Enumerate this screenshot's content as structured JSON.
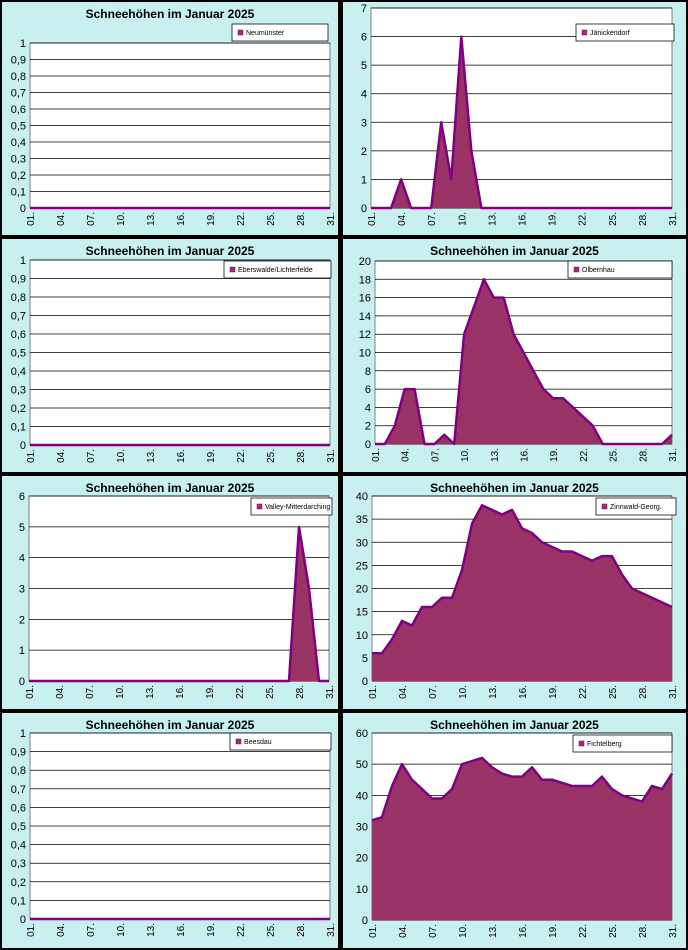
{
  "theme": {
    "panel_bg": "#c7f0ef",
    "plot_bg": "#ffffff",
    "area_fill": "#993366",
    "area_line": "#800080",
    "grid": "#000000"
  },
  "chart_data": [
    {
      "type": "area",
      "title": "Schneehöhen im Januar 2025",
      "series": [
        {
          "name": "Neumünster",
          "values": [
            0,
            0,
            0,
            0,
            0,
            0,
            0,
            0,
            0,
            0,
            0,
            0,
            0,
            0,
            0,
            0,
            0,
            0,
            0,
            0,
            0,
            0,
            0,
            0,
            0,
            0,
            0,
            0,
            0,
            0,
            0
          ]
        }
      ],
      "ylim": [
        0,
        1
      ],
      "yticks": [
        "0",
        "0,1",
        "0,2",
        "0,3",
        "0,4",
        "0,5",
        "0,6",
        "0,7",
        "0,8",
        "0,9",
        "1"
      ],
      "xticks": [
        "01.",
        "04.",
        "07.",
        "10.",
        "13.",
        "16.",
        "19.",
        "22.",
        "25.",
        "28.",
        "31."
      ],
      "legend": "top-right"
    },
    {
      "type": "area",
      "title": "Schneehöhen im Januar 2025",
      "series": [
        {
          "name": "Jänickendorf",
          "values": [
            0,
            0,
            0,
            1,
            0,
            0,
            0,
            3,
            1,
            6,
            2,
            0,
            0,
            0,
            0,
            0,
            0,
            0,
            0,
            0,
            0,
            0,
            0,
            0,
            0,
            0,
            0,
            0,
            0,
            0,
            0
          ]
        }
      ],
      "ylim": [
        0,
        7
      ],
      "yticks": [
        "0",
        "1",
        "2",
        "3",
        "4",
        "5",
        "6",
        "7"
      ],
      "xticks": [
        "01.",
        "04.",
        "07.",
        "10.",
        "13.",
        "16.",
        "19.",
        "22.",
        "25.",
        "28.",
        "31."
      ],
      "legend": "top-right"
    },
    {
      "type": "area",
      "title": "Schneehöhen im Januar 2025",
      "series": [
        {
          "name": "Eberswalde/Lichterfelde",
          "values": [
            0,
            0,
            0,
            0,
            0,
            0,
            0,
            0,
            0,
            0,
            0,
            0,
            0,
            0,
            0,
            0,
            0,
            0,
            0,
            0,
            0,
            0,
            0,
            0,
            0,
            0,
            0,
            0,
            0,
            0,
            0
          ]
        }
      ],
      "ylim": [
        0,
        1
      ],
      "yticks": [
        "0",
        "0,1",
        "0,2",
        "0,3",
        "0,4",
        "0,5",
        "0,6",
        "0,7",
        "0,8",
        "0,9",
        "1"
      ],
      "xticks": [
        "01.",
        "04.",
        "07.",
        "10.",
        "13.",
        "16.",
        "19.",
        "22.",
        "25.",
        "28.",
        "31."
      ],
      "legend": "top-right"
    },
    {
      "type": "area",
      "title": "Schneehöhen im Januar 2025",
      "series": [
        {
          "name": "Olbernhau",
          "values": [
            0,
            0,
            2,
            6,
            6,
            0,
            0,
            1,
            0,
            12,
            15,
            18,
            16,
            16,
            12,
            10,
            8,
            6,
            5,
            5,
            4,
            3,
            2,
            0,
            0,
            0,
            0,
            0,
            0,
            0,
            1
          ]
        }
      ],
      "ylim": [
        0,
        20
      ],
      "yticks": [
        "0",
        "2",
        "4",
        "6",
        "8",
        "10",
        "12",
        "14",
        "16",
        "18",
        "20"
      ],
      "xticks": [
        "01.",
        "04.",
        "07.",
        "10.",
        "13.",
        "16.",
        "19.",
        "22.",
        "25.",
        "28.",
        "31."
      ],
      "legend": "top-right"
    },
    {
      "type": "area",
      "title": "Schneehöhen im Januar 2025",
      "series": [
        {
          "name": "Valley-Mitterdarching",
          "values": [
            0,
            0,
            0,
            0,
            0,
            0,
            0,
            0,
            0,
            0,
            0,
            0,
            0,
            0,
            0,
            0,
            0,
            0,
            0,
            0,
            0,
            0,
            0,
            0,
            0,
            0,
            0,
            5,
            3,
            0,
            0
          ]
        }
      ],
      "ylim": [
        0,
        6
      ],
      "yticks": [
        "0",
        "1",
        "2",
        "3",
        "4",
        "5",
        "6"
      ],
      "xticks": [
        "01.",
        "04.",
        "07.",
        "10.",
        "13.",
        "16.",
        "19.",
        "22.",
        "25.",
        "28.",
        "31."
      ],
      "legend": "top-right"
    },
    {
      "type": "area",
      "title": "Schneehöhen im Januar 2025",
      "series": [
        {
          "name": "Zinnwald-Georg.",
          "values": [
            6,
            6,
            9,
            13,
            12,
            16,
            16,
            18,
            18,
            24,
            34,
            38,
            37,
            36,
            37,
            33,
            32,
            30,
            29,
            28,
            28,
            27,
            26,
            27,
            27,
            23,
            20,
            19,
            18,
            17,
            16
          ]
        }
      ],
      "ylim": [
        0,
        40
      ],
      "yticks": [
        "0",
        "5",
        "10",
        "15",
        "20",
        "25",
        "30",
        "35",
        "40"
      ],
      "xticks": [
        "01.",
        "04.",
        "07.",
        "10.",
        "13.",
        "16.",
        "19.",
        "22.",
        "25.",
        "28.",
        "31."
      ],
      "legend": "top-right"
    },
    {
      "type": "area",
      "title": "Schneehöhen im Januar 2025",
      "series": [
        {
          "name": "Beesdau",
          "values": [
            0,
            0,
            0,
            0,
            0,
            0,
            0,
            0,
            0,
            0,
            0,
            0,
            0,
            0,
            0,
            0,
            0,
            0,
            0,
            0,
            0,
            0,
            0,
            0,
            0,
            0,
            0,
            0,
            0,
            0,
            0
          ]
        }
      ],
      "ylim": [
        0,
        1
      ],
      "yticks": [
        "0",
        "0,1",
        "0,2",
        "0,3",
        "0,4",
        "0,5",
        "0,6",
        "0,7",
        "0,8",
        "0,9",
        "1"
      ],
      "xticks": [
        "01.",
        "04.",
        "07.",
        "10.",
        "13.",
        "16.",
        "19.",
        "22.",
        "25.",
        "28.",
        "31."
      ],
      "legend": "top-right"
    },
    {
      "type": "area",
      "title": "Schneehöhen im Januar 2025",
      "series": [
        {
          "name": "Fichtelberg",
          "values": [
            32,
            33,
            43,
            50,
            45,
            42,
            39,
            39,
            42,
            50,
            51,
            52,
            49,
            47,
            46,
            46,
            49,
            45,
            45,
            44,
            43,
            43,
            43,
            46,
            42,
            40,
            39,
            38,
            43,
            42,
            47
          ]
        }
      ],
      "ylim": [
        0,
        60
      ],
      "yticks": [
        "0",
        "10",
        "20",
        "30",
        "40",
        "50",
        "60"
      ],
      "xticks": [
        "01.",
        "04.",
        "07.",
        "10.",
        "13.",
        "16.",
        "19.",
        "22.",
        "25.",
        "28.",
        "31."
      ],
      "legend": "top-right"
    }
  ]
}
